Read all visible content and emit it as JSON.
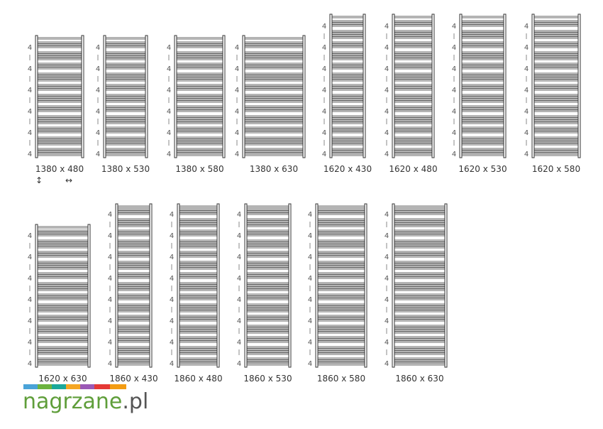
{
  "radiators": [
    {
      "label": "1380 x 480"
    },
    {
      "label": "1380 x 530"
    },
    {
      "label": "1380 x 580"
    },
    {
      "label": "1380 x 630"
    },
    {
      "label": "1620 x 430"
    },
    {
      "label": "1620 x 480"
    },
    {
      "label": "1620 x 530"
    },
    {
      "label": "1620 x 580"
    },
    {
      "label": "1620 x 630"
    },
    {
      "label": "1860 x 430"
    },
    {
      "label": "1860 x 480"
    },
    {
      "label": "1860 x 530"
    },
    {
      "label": "1860 x 580"
    },
    {
      "label": "1860 x 630"
    }
  ],
  "section_label": "4",
  "height_symbol": "↕",
  "width_symbol": "↔",
  "logo_name": "nagrzane",
  "logo_tld": ".pl"
}
